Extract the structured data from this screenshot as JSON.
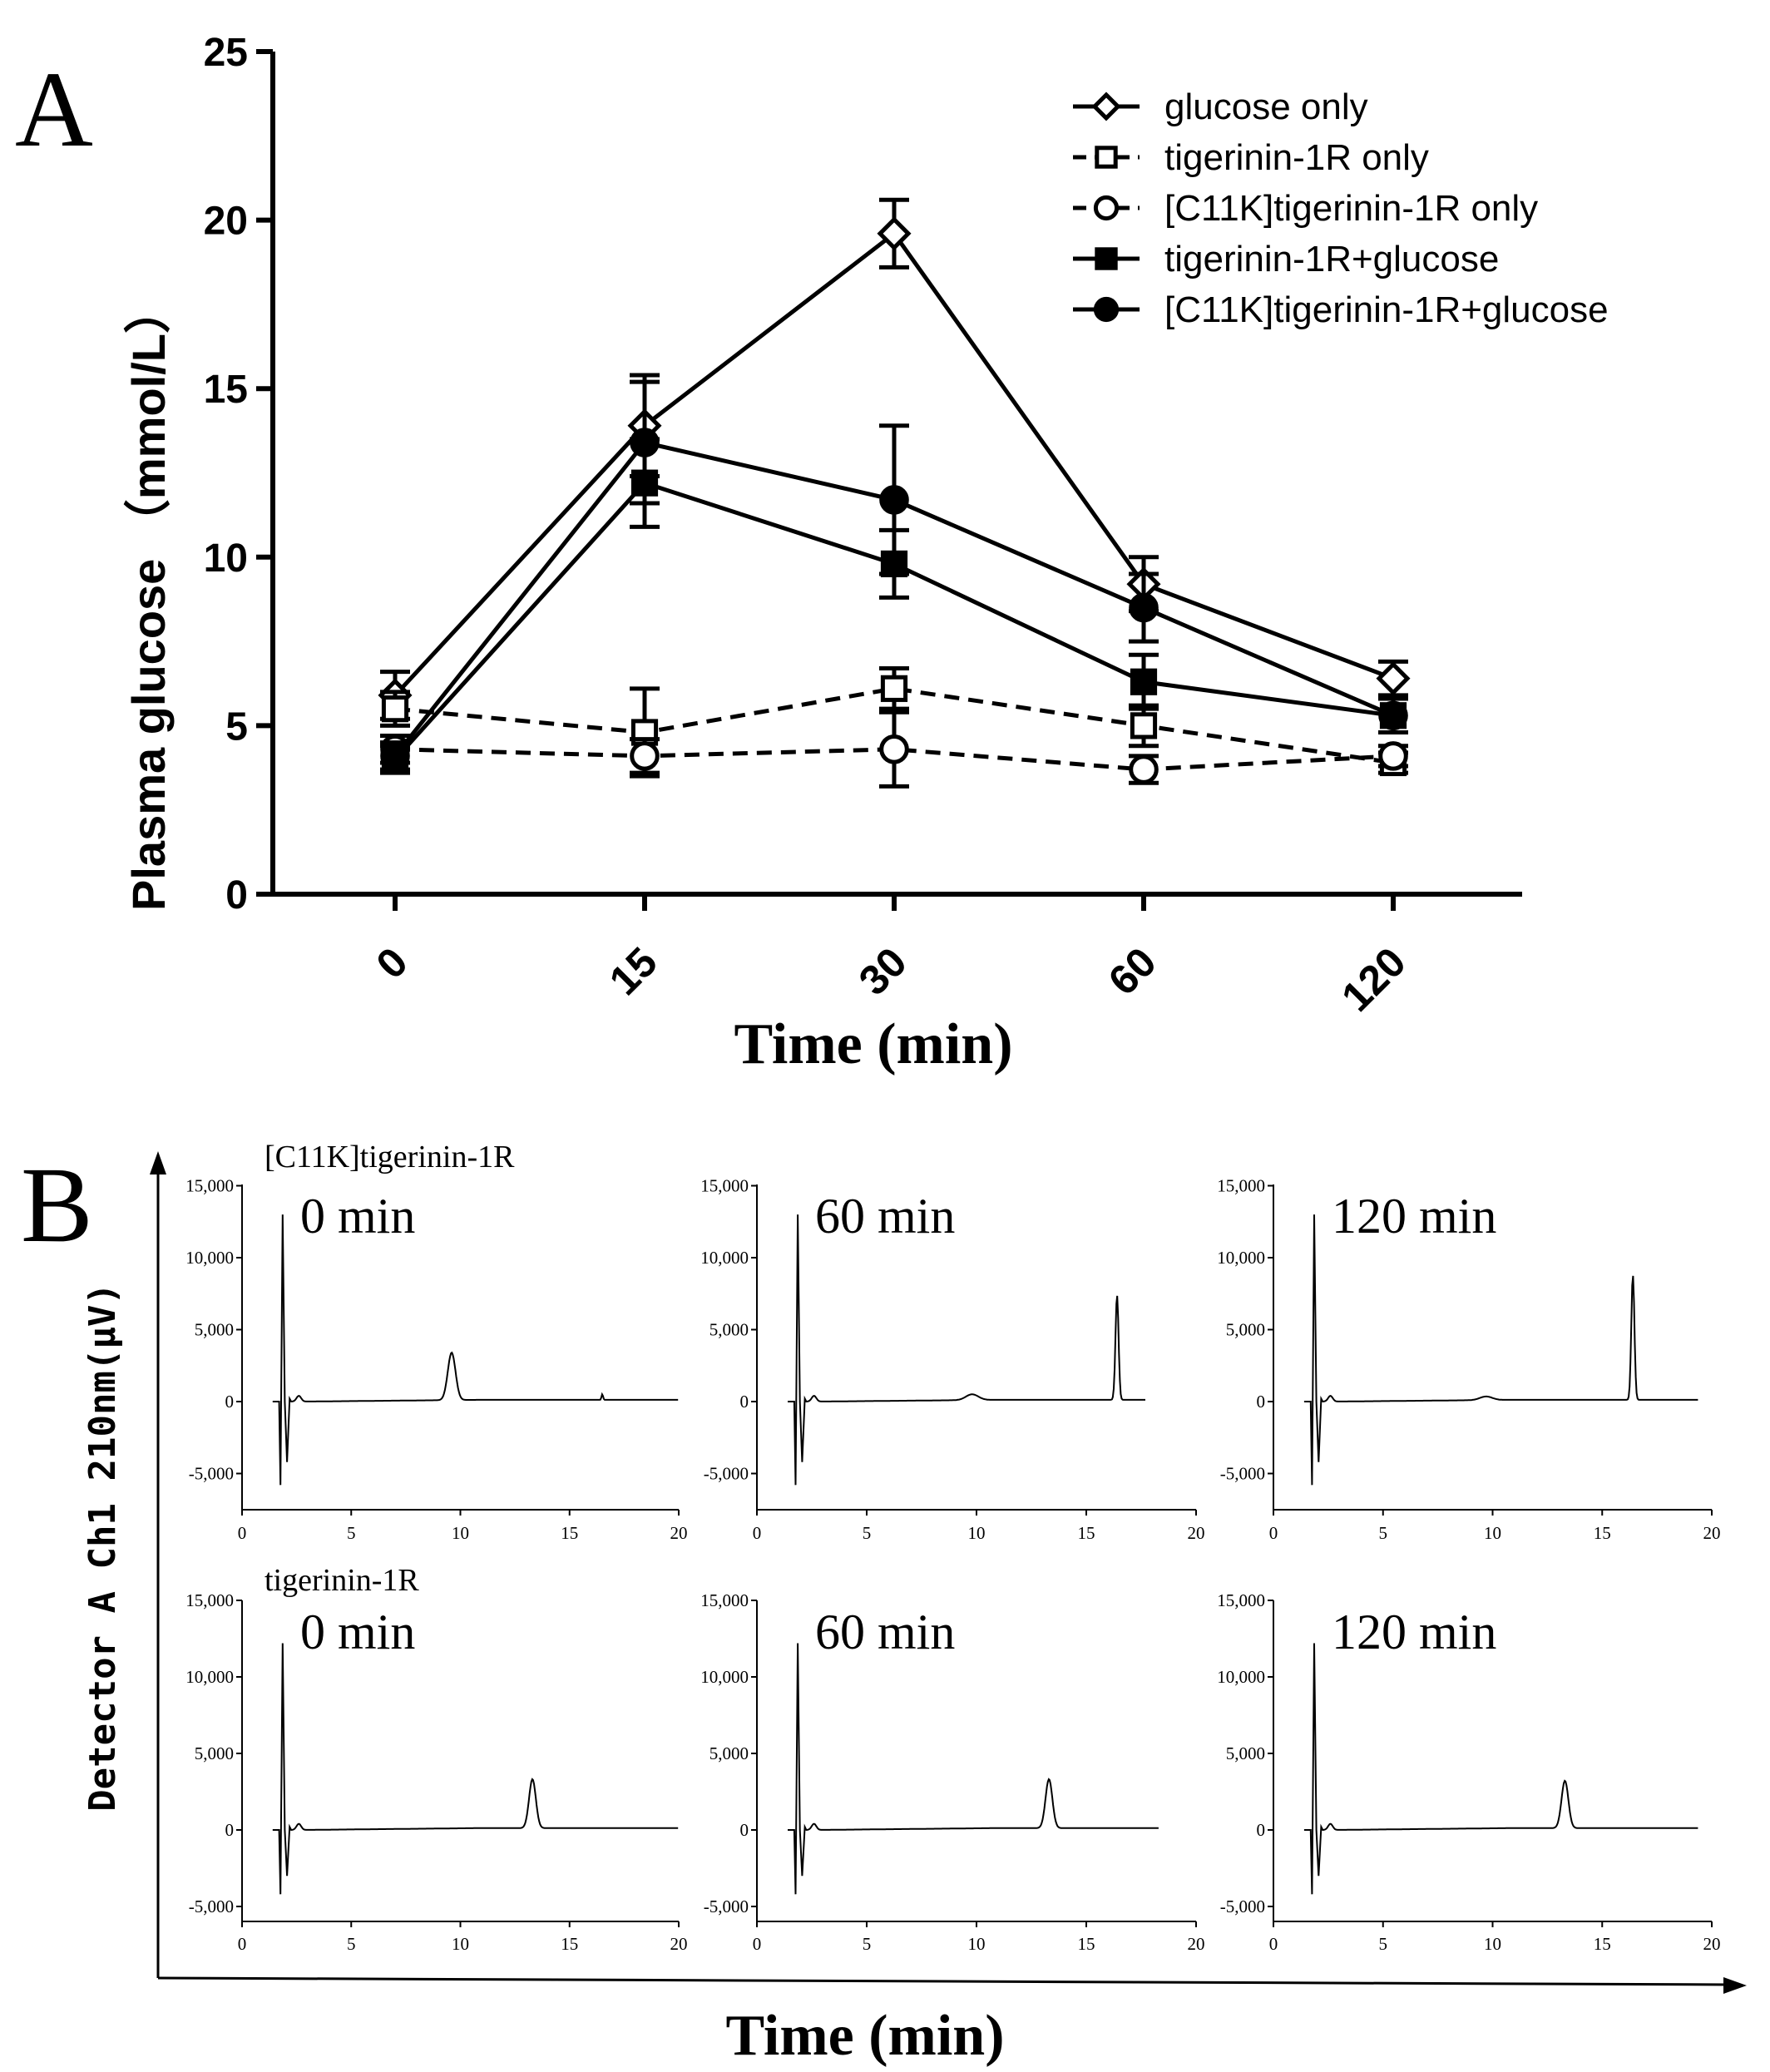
{
  "panel_a": {
    "panel_label": "A",
    "colors": {
      "ink": "#000000",
      "background": "#ffffff"
    }
  },
  "panel_b": {
    "panel_label": "B",
    "y_axis_label": "Detector A Ch1 210nm(μV)",
    "x_axis_label": "Time (min)",
    "row_labels": [
      "[C11K]tigerinin-1R",
      "tigerinin-1R"
    ],
    "time_labels": [
      "0 min",
      "60 min",
      "120 min"
    ]
  },
  "chart_data": [
    {
      "type": "line",
      "title": "",
      "xlabel": "Time (min)",
      "ylabel": "Plasma glucose （mmol/L）",
      "categories": [
        "0",
        "15",
        "30",
        "60",
        "120"
      ],
      "ylim": [
        0,
        25
      ],
      "yticks": [
        "0",
        "5",
        "10",
        "15",
        "20",
        "25"
      ],
      "grid": false,
      "legend_position": "top-right",
      "series": [
        {
          "name": "glucose only",
          "marker": "diamond-open",
          "line": "solid",
          "values": [
            5.9,
            13.9,
            19.6,
            9.2,
            6.4
          ],
          "errors": [
            0.7,
            1.5,
            1.0,
            0.8,
            0.5
          ]
        },
        {
          "name": "tigerinin-1R only",
          "marker": "square-open",
          "line": "dashed",
          "values": [
            5.5,
            4.8,
            6.1,
            5.0,
            3.9
          ],
          "errors": [
            0.5,
            1.3,
            0.6,
            0.6,
            0.3
          ]
        },
        {
          "name": "[C11K]tigerinin-1R only",
          "marker": "circle-open",
          "line": "dashed",
          "values": [
            4.3,
            4.1,
            4.3,
            3.7,
            4.1
          ],
          "errors": [
            0.4,
            0.5,
            1.1,
            0.4,
            0.3
          ]
        },
        {
          "name": "tigerinin-1R+glucose",
          "marker": "square-filled",
          "line": "solid",
          "values": [
            4.0,
            12.2,
            9.8,
            6.3,
            5.3
          ],
          "errors": [
            0.4,
            1.3,
            1.0,
            0.8,
            0.5
          ]
        },
        {
          "name": "[C11K]tigerinin-1R+glucose",
          "marker": "circle-filled",
          "line": "solid",
          "values": [
            4.1,
            13.4,
            11.7,
            8.5,
            5.3
          ],
          "errors": [
            0.4,
            1.8,
            2.2,
            1.0,
            0.5
          ]
        }
      ]
    },
    {
      "type": "line",
      "title": "[C11K]tigerinin-1R 0 min",
      "xlabel": "Time (min)",
      "ylabel": "Detector A Ch1 210nm(μV)",
      "xlim": [
        0,
        20
      ],
      "ylim": [
        -7500,
        15000
      ],
      "xticks": [
        "0",
        "5",
        "10",
        "15",
        "20"
      ],
      "yticks": [
        "-5,000",
        "0",
        "5,000",
        "10,000",
        "15,000"
      ],
      "x_end": 20,
      "peaks": [
        {
          "x": 9.6,
          "y": 3300,
          "w": 0.25
        },
        {
          "x": 16.5,
          "y": 400,
          "w": 0.05
        }
      ]
    },
    {
      "type": "line",
      "title": "[C11K]tigerinin-1R 60 min",
      "xlabel": "Time (min)",
      "ylabel": "Detector A Ch1 210nm(μV)",
      "xlim": [
        0,
        20
      ],
      "ylim": [
        -7500,
        15000
      ],
      "xticks": [
        "0",
        "5",
        "10",
        "15",
        "20"
      ],
      "yticks": [
        "-5,000",
        "0",
        "5,000",
        "10,000",
        "15,000"
      ],
      "x_end": 17.7,
      "peaks": [
        {
          "x": 9.8,
          "y": 400,
          "w": 0.4
        },
        {
          "x": 16.4,
          "y": 7300,
          "w": 0.1
        }
      ]
    },
    {
      "type": "line",
      "title": "[C11K]tigerinin-1R 120 min",
      "xlabel": "Time (min)",
      "ylabel": "Detector A Ch1 210nm(μV)",
      "xlim": [
        0,
        20
      ],
      "ylim": [
        -7500,
        15000
      ],
      "xticks": [
        "0",
        "5",
        "10",
        "15",
        "20"
      ],
      "yticks": [
        "-5,000",
        "0",
        "5,000",
        "10,000",
        "15,000"
      ],
      "x_end": 19.4,
      "peaks": [
        {
          "x": 9.7,
          "y": 250,
          "w": 0.4
        },
        {
          "x": 16.4,
          "y": 8700,
          "w": 0.1
        }
      ]
    },
    {
      "type": "line",
      "title": "tigerinin-1R 0 min",
      "xlabel": "Time (min)",
      "ylabel": "Detector A Ch1 210nm(μV)",
      "xlim": [
        0,
        20
      ],
      "ylim": [
        -6000,
        15000
      ],
      "xticks": [
        "0",
        "5",
        "10",
        "15",
        "20"
      ],
      "yticks": [
        "-5,000",
        "0",
        "5,000",
        "10,000",
        "15,000"
      ],
      "x_end": 20,
      "peaks": [
        {
          "x": 13.3,
          "y": 3200,
          "w": 0.22
        }
      ]
    },
    {
      "type": "line",
      "title": "tigerinin-1R 60 min",
      "xlabel": "Time (min)",
      "ylabel": "Detector A Ch1 210nm(μV)",
      "xlim": [
        0,
        20
      ],
      "ylim": [
        -6000,
        15000
      ],
      "xticks": [
        "0",
        "5",
        "10",
        "15",
        "20"
      ],
      "yticks": [
        "-5,000",
        "0",
        "5,000",
        "10,000",
        "15,000"
      ],
      "x_end": 18.3,
      "peaks": [
        {
          "x": 13.3,
          "y": 3200,
          "w": 0.22
        }
      ]
    },
    {
      "type": "line",
      "title": "tigerinin-1R 120 min",
      "xlabel": "Time (min)",
      "ylabel": "Detector A Ch1 210nm(μV)",
      "xlim": [
        0,
        20
      ],
      "ylim": [
        -6000,
        15000
      ],
      "xticks": [
        "0",
        "5",
        "10",
        "15",
        "20"
      ],
      "yticks": [
        "-5,000",
        "0",
        "5,000",
        "10,000",
        "15,000"
      ],
      "x_end": 19.4,
      "peaks": [
        {
          "x": 13.3,
          "y": 3100,
          "w": 0.22
        }
      ]
    }
  ]
}
